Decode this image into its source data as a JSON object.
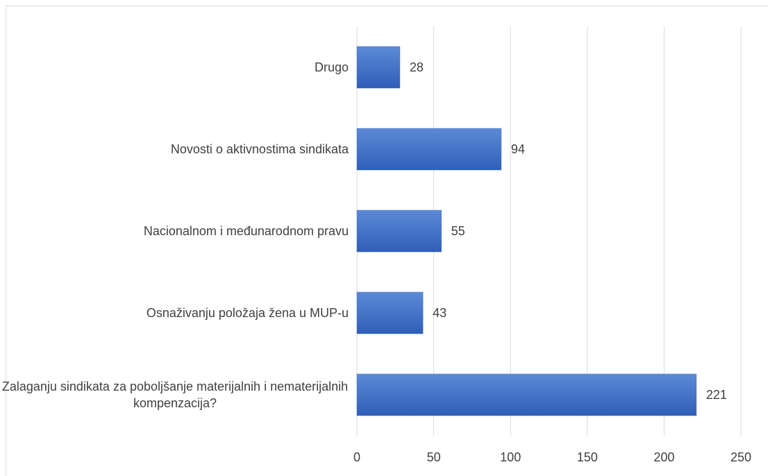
{
  "chart_data": {
    "type": "bar",
    "orientation": "horizontal",
    "categories": [
      "Drugo",
      "Novosti o aktivnostima sindikata",
      "Nacionalnom i međunarodnom pravu",
      "Osnaživanju položaja žena u MUP-u",
      "Zalaganju sindikata za poboljšanje materijalnih i nematerijalnih kompenzacija?"
    ],
    "values": [
      28,
      94,
      55,
      43,
      221
    ],
    "color": "#4472c4",
    "xlim": [
      0,
      250
    ],
    "xticks": [
      0,
      50,
      100,
      150,
      200,
      250
    ],
    "grid": true
  }
}
